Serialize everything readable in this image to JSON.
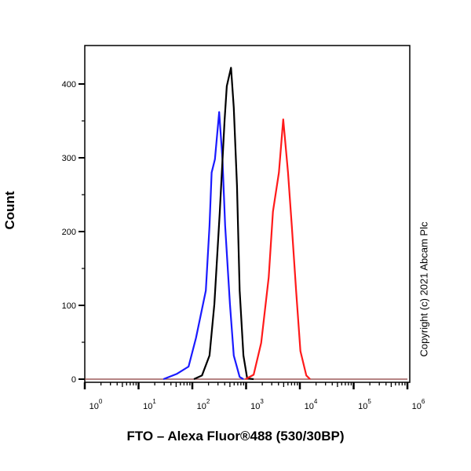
{
  "chart_data": {
    "type": "line",
    "xlabel": "FTO – Alexa Fluor®488 (530/30BP)",
    "ylabel": "Count",
    "xscale": "log",
    "xlim": [
      1,
      1000000
    ],
    "ylim": [
      0,
      452
    ],
    "x_ticks": [
      {
        "base": "10",
        "exp": "0",
        "value": 1
      },
      {
        "base": "10",
        "exp": "1",
        "value": 10
      },
      {
        "base": "10",
        "exp": "2",
        "value": 100
      },
      {
        "base": "10",
        "exp": "3",
        "value": 1000
      },
      {
        "base": "10",
        "exp": "4",
        "value": 10000
      },
      {
        "base": "10",
        "exp": "5",
        "value": 100000
      },
      {
        "base": "10",
        "exp": "6",
        "value": 1000000
      }
    ],
    "y_ticks": [
      "0",
      "100",
      "200",
      "300",
      "400"
    ],
    "grid": false,
    "annotation": "Copyright (c) 2021 Abcam Plc",
    "series": [
      {
        "color": "#1a1aff",
        "points": [
          [
            29,
            0
          ],
          [
            51,
            7
          ],
          [
            85,
            17
          ],
          [
            117,
            56
          ],
          [
            178,
            120
          ],
          [
            209,
            208
          ],
          [
            229,
            280
          ],
          [
            263,
            298
          ],
          [
            316,
            362
          ],
          [
            363,
            298
          ],
          [
            407,
            208
          ],
          [
            501,
            102
          ],
          [
            589,
            32
          ],
          [
            759,
            3
          ],
          [
            891,
            0
          ]
        ]
      },
      {
        "color": "#000000",
        "points": [
          [
            107,
            0
          ],
          [
            151,
            5
          ],
          [
            209,
            32
          ],
          [
            257,
            102
          ],
          [
            324,
            227
          ],
          [
            398,
            351
          ],
          [
            437,
            397
          ],
          [
            525,
            422
          ],
          [
            589,
            368
          ],
          [
            676,
            262
          ],
          [
            759,
            120
          ],
          [
            891,
            32
          ],
          [
            1047,
            1
          ],
          [
            1380,
            0
          ]
        ]
      },
      {
        "color": "#ff1a1a",
        "points": [
          [
            977,
            0
          ],
          [
            1380,
            6
          ],
          [
            1905,
            49
          ],
          [
            2630,
            138
          ],
          [
            3162,
            227
          ],
          [
            4074,
            280
          ],
          [
            4898,
            352
          ],
          [
            6026,
            280
          ],
          [
            7079,
            208
          ],
          [
            8511,
            120
          ],
          [
            10233,
            38
          ],
          [
            13183,
            5
          ],
          [
            15488,
            0
          ]
        ]
      }
    ]
  }
}
